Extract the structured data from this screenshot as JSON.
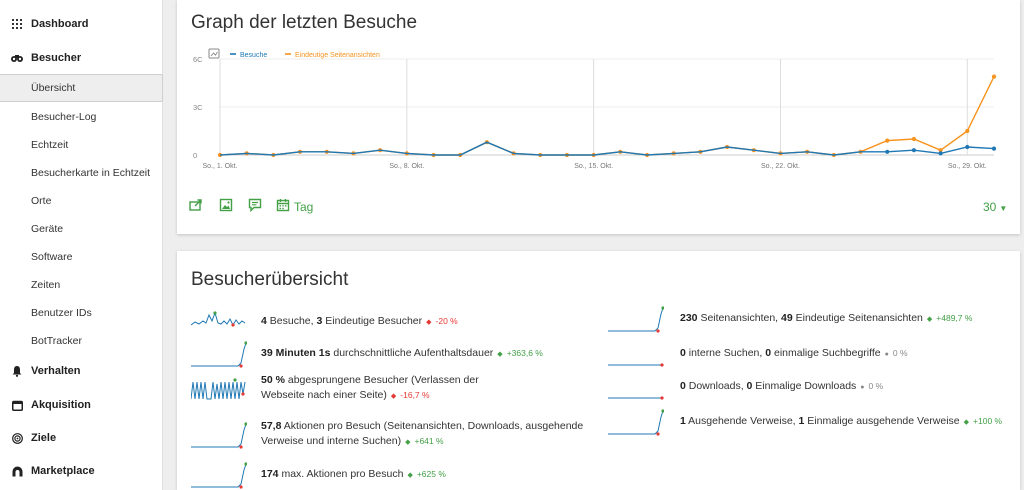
{
  "sidebar": {
    "items": [
      {
        "label": "Dashboard",
        "icon": "grid-icon"
      },
      {
        "label": "Besucher",
        "icon": "binoculars-icon"
      },
      {
        "label": "Verhalten",
        "icon": "bell-icon"
      },
      {
        "label": "Akquisition",
        "icon": "calendar-icon"
      },
      {
        "label": "Ziele",
        "icon": "target-icon"
      },
      {
        "label": "Marketplace",
        "icon": "marketplace-icon"
      }
    ],
    "subitems": [
      "Übersicht",
      "Besucher-Log",
      "Echtzeit",
      "Besucherkarte in Echtzeit",
      "Orte",
      "Geräte",
      "Software",
      "Zeiten",
      "Benutzer IDs",
      "BotTracker"
    ]
  },
  "graph_card": {
    "title": "Graph der letzten Besuche",
    "period": "Tag",
    "limit": "30"
  },
  "chart_data": {
    "type": "line",
    "legend": [
      "Besuche",
      "Eindeutige Seitenansichten"
    ],
    "y_ticks": [
      "6C",
      "3C",
      "0"
    ],
    "ylim": [
      0,
      60
    ],
    "x_tick_labels": [
      "So., 1. Okt.",
      "So., 8. Okt.",
      "So., 15. Okt.",
      "So., 22. Okt.",
      "So., 29. Okt."
    ],
    "x": [
      "So., 1. Okt.",
      "Mo., 2. Okt.",
      "Di., 3. Okt.",
      "Mi., 4. Okt.",
      "Do., 5. Okt.",
      "Fr., 6. Okt.",
      "Sa., 7. Okt.",
      "So., 8. Okt.",
      "Mo., 9. Okt.",
      "Di., 10. Okt.",
      "Mi., 11. Okt.",
      "Do., 12. Okt.",
      "Fr., 13. Okt.",
      "Sa., 14. Okt.",
      "So., 15. Okt.",
      "Mo., 16. Okt.",
      "Di., 17. Okt.",
      "Mi., 18. Okt.",
      "Do., 19. Okt.",
      "Fr., 20. Okt.",
      "Sa., 21. Okt.",
      "So., 22. Okt.",
      "Mo., 23. Okt.",
      "Di., 24. Okt.",
      "Mi., 25. Okt.",
      "Do., 26. Okt.",
      "Fr., 27. Okt.",
      "Sa., 28. Okt.",
      "So., 29. Okt.",
      "Mo., 30. Okt."
    ],
    "series": [
      {
        "name": "Besuche",
        "color": "#1f78b4",
        "values": [
          0,
          1,
          0,
          2,
          2,
          1,
          3,
          1,
          0,
          0,
          8,
          1,
          0,
          0,
          0,
          2,
          0,
          1,
          2,
          5,
          3,
          1,
          2,
          0,
          2,
          2,
          3,
          1,
          5,
          4
        ]
      },
      {
        "name": "Eindeutige Seitenansichten",
        "color": "#f7931e",
        "values": [
          0,
          1,
          0,
          2,
          2,
          1,
          3,
          1,
          0,
          0,
          8,
          1,
          0,
          0,
          0,
          2,
          0,
          1,
          2,
          5,
          3,
          1,
          2,
          0,
          2,
          9,
          10,
          3,
          15,
          49
        ]
      }
    ],
    "grid": true,
    "legend_placement": "top-left"
  },
  "overview_card": {
    "title": "Besucherübersicht"
  },
  "overview_rows_left": [
    {
      "parts": [
        {
          "b": "4"
        },
        {
          "t": " Besuche, "
        },
        {
          "b": "3"
        },
        {
          "t": " Eindeutige Besucher"
        }
      ],
      "change": "-20 %",
      "dir": "neg",
      "spark": "multi"
    },
    {
      "parts": [
        {
          "b": "39 Minuten 1s"
        },
        {
          "t": " durchschnittliche Aufenthaltsdauer"
        }
      ],
      "change": "+363,6 %",
      "dir": "pos",
      "spark": "flat-end"
    },
    {
      "parts": [
        {
          "b": "50 %"
        },
        {
          "t": " abgesprungene Besucher (Verlassen der Webseite nach einer Seite)"
        }
      ],
      "change": "-16,7 %",
      "dir": "neg",
      "spark": "square"
    },
    {
      "parts": [
        {
          "b": "57,8"
        },
        {
          "t": " Aktionen pro Besuch (Seitenansichten, Downloads, ausgehende Verweise und interne Suchen)"
        }
      ],
      "change": "+641 %",
      "dir": "pos",
      "spark": "flat-end"
    },
    {
      "parts": [
        {
          "b": "174"
        },
        {
          "t": " max. Aktionen pro Besuch"
        }
      ],
      "change": "+625 %",
      "dir": "pos",
      "spark": "flat-end"
    }
  ],
  "overview_rows_right": [
    {
      "parts": [
        {
          "b": "230"
        },
        {
          "t": " Seitenansichten, "
        },
        {
          "b": "49"
        },
        {
          "t": " Eindeutige Seitenansichten"
        }
      ],
      "change": "+489,7 %",
      "dir": "pos",
      "spark": "flat-end"
    },
    {
      "parts": [
        {
          "b": "0"
        },
        {
          "t": " interne Suchen, "
        },
        {
          "b": "0"
        },
        {
          "t": " einmalige Suchbegriffe"
        }
      ],
      "change": "0 %",
      "dir": "neu",
      "spark": "flat"
    },
    {
      "parts": [
        {
          "b": "0"
        },
        {
          "t": " Downloads, "
        },
        {
          "b": "0"
        },
        {
          "t": " Einmalige Downloads"
        }
      ],
      "change": "0 %",
      "dir": "neu",
      "spark": "flat"
    },
    {
      "parts": [
        {
          "b": "1"
        },
        {
          "t": " Ausgehende Verweise, "
        },
        {
          "b": "1"
        },
        {
          "t": " Einmalige ausgehende Verweise"
        }
      ],
      "change": "+100 %",
      "dir": "pos",
      "spark": "flat-end"
    }
  ],
  "colors": {
    "green": "#43a047",
    "red": "#e53935",
    "blue": "#1f78b4",
    "orange": "#f7931e"
  }
}
